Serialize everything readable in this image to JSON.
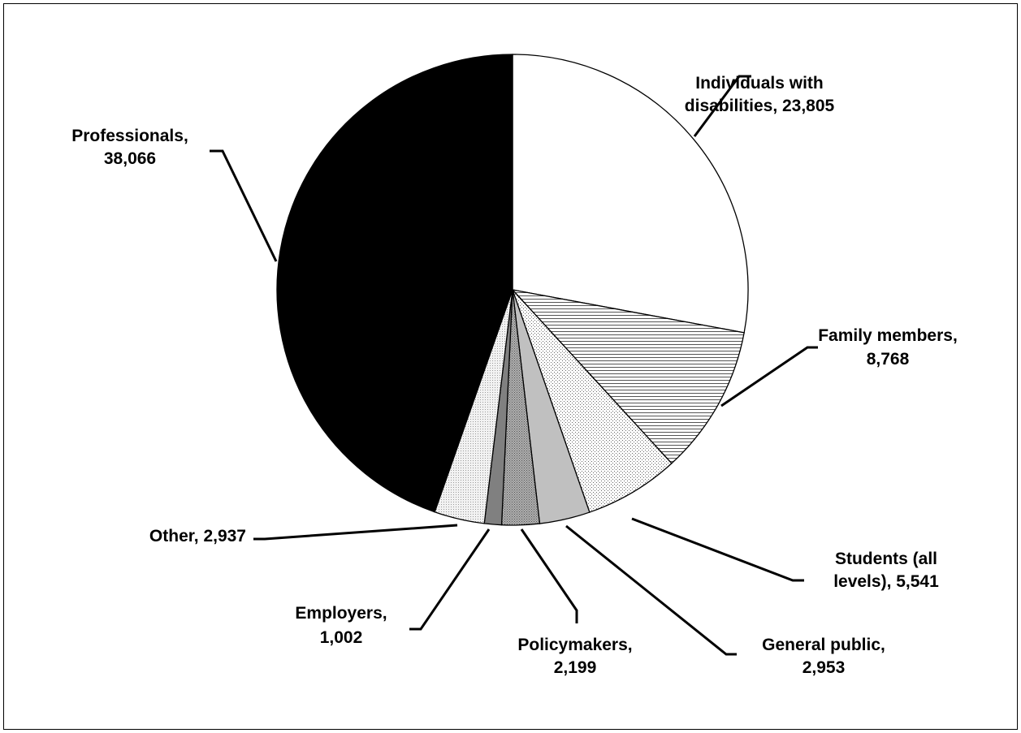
{
  "chart_data": {
    "type": "pie",
    "title": "",
    "start_angle_deg": 0,
    "direction": "clockwise",
    "legend": "none",
    "slices": [
      {
        "label_line1": "Individuals with",
        "label_line2": "disabilities, 23,805",
        "category": "Individuals with disabilities",
        "value": 23805,
        "fill": "#ffffff",
        "pattern": "none"
      },
      {
        "label_line1": "Family members,",
        "label_line2": "8,768",
        "category": "Family members",
        "value": 8768,
        "fill": "#ffffff",
        "pattern": "horizontal-lines"
      },
      {
        "label_line1": "Students (all",
        "label_line2": "levels), 5,541",
        "category": "Students (all levels)",
        "value": 5541,
        "fill": "#ffffff",
        "pattern": "fine-dots"
      },
      {
        "label_line1": "General public,",
        "label_line2": "2,953",
        "category": "General public",
        "value": 2953,
        "fill": "#c0c0c0",
        "pattern": "none"
      },
      {
        "label_line1": "Policymakers,",
        "label_line2": "2,199",
        "category": "Policymakers",
        "value": 2199,
        "fill": "#a0a0a0",
        "pattern": "dots"
      },
      {
        "label_line1": "Employers,",
        "label_line2": "1,002",
        "category": "Employers",
        "value": 1002,
        "fill": "#808080",
        "pattern": "none"
      },
      {
        "label_line1": "Other, 2,937",
        "label_line2": "",
        "category": "Other",
        "value": 2937,
        "fill": "#ececec",
        "pattern": "light-dots"
      },
      {
        "label_line1": "Professionals,",
        "label_line2": "38,066",
        "category": "Professionals",
        "value": 38066,
        "fill": "#000000",
        "pattern": "none"
      }
    ]
  }
}
